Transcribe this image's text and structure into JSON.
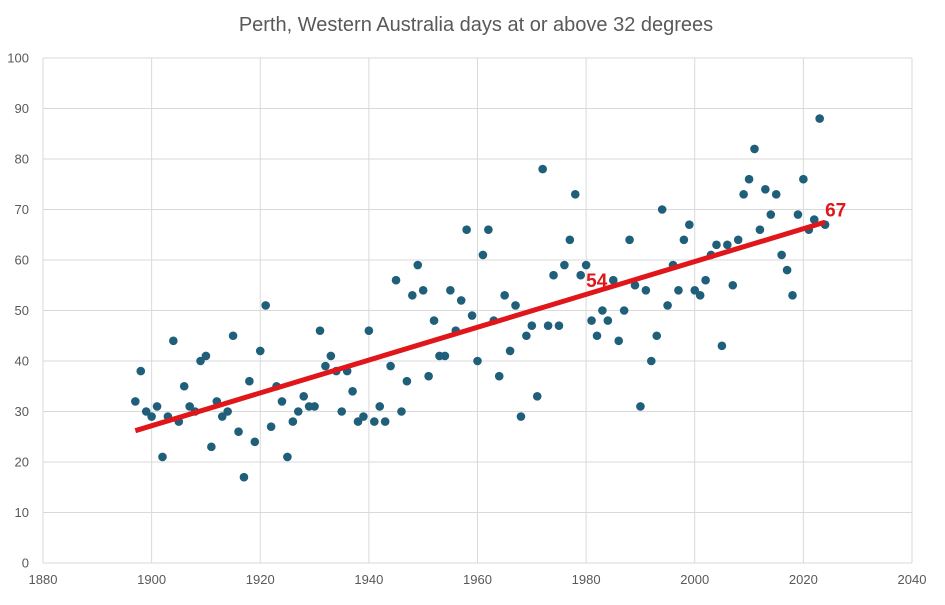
{
  "chart_data": {
    "type": "scatter",
    "title": "Perth, Western Australia days at or above 32 degrees",
    "xlabel": "",
    "ylabel": "",
    "xlim": [
      1880,
      2040
    ],
    "ylim": [
      0,
      100
    ],
    "x_ticks": [
      "1880",
      "1900",
      "1920",
      "1940",
      "1960",
      "1980",
      "2000",
      "2020",
      "2040"
    ],
    "y_ticks": [
      "0",
      "10",
      "20",
      "30",
      "40",
      "50",
      "60",
      "70",
      "80",
      "90",
      "100"
    ],
    "grid": true,
    "legend": "none",
    "colors": {
      "points": "#1f5f7a",
      "trendline": "#e0161b",
      "grid": "#d9d9d9",
      "text": "#595959"
    },
    "series": [
      {
        "x": [
          1897,
          1898,
          1899,
          1900,
          1901,
          1902,
          1903,
          1904,
          1905,
          1906,
          1907,
          1908,
          1909,
          1910,
          1911,
          1912,
          1913,
          1914,
          1915,
          1916,
          1917,
          1918,
          1919,
          1920,
          1921,
          1922,
          1923,
          1924,
          1925,
          1926,
          1927,
          1928,
          1929,
          1930,
          1931,
          1932,
          1933,
          1934,
          1935,
          1936,
          1937,
          1938,
          1939,
          1940,
          1941,
          1942,
          1943,
          1944,
          1945,
          1946,
          1947,
          1948,
          1949,
          1950,
          1951,
          1952,
          1953,
          1954,
          1955,
          1956,
          1957,
          1958,
          1959,
          1960,
          1961,
          1962,
          1963,
          1964,
          1965,
          1966,
          1967,
          1968,
          1969,
          1970,
          1971,
          1972,
          1973,
          1974,
          1975,
          1976,
          1977,
          1978,
          1979,
          1980,
          1981,
          1982,
          1983,
          1984,
          1985,
          1986,
          1987,
          1988,
          1989,
          1990,
          1991,
          1992,
          1993,
          1994,
          1995,
          1996,
          1997,
          1998,
          1999,
          2000,
          2001,
          2002,
          2003,
          2004,
          2005,
          2006,
          2007,
          2008,
          2009,
          2010,
          2011,
          2012,
          2013,
          2014,
          2015,
          2016,
          2017,
          2018,
          2019,
          2020,
          2021,
          2022,
          2023,
          2024
        ],
        "y": [
          32,
          38,
          30,
          29,
          31,
          21,
          29,
          44,
          28,
          35,
          31,
          30,
          40,
          41,
          23,
          32,
          29,
          30,
          45,
          26,
          17,
          36,
          24,
          42,
          51,
          27,
          35,
          32,
          21,
          28,
          30,
          33,
          31,
          31,
          46,
          39,
          41,
          38,
          30,
          38,
          34,
          28,
          29,
          46,
          28,
          31,
          28,
          39,
          56,
          30,
          36,
          53,
          59,
          54,
          37,
          48,
          41,
          41,
          54,
          46,
          52,
          66,
          49,
          40,
          61,
          66,
          48,
          37,
          53,
          42,
          51,
          29,
          45,
          47,
          33,
          78,
          47,
          57,
          47,
          59,
          64,
          73,
          57,
          59,
          48,
          45,
          50,
          48,
          56,
          44,
          50,
          64,
          55,
          31,
          54,
          40,
          45,
          70,
          51,
          59,
          54,
          64,
          67,
          54,
          53,
          56,
          61,
          63,
          43,
          63,
          55,
          64,
          73,
          76,
          82,
          66,
          74,
          69,
          73,
          61,
          58,
          53,
          69,
          76,
          66,
          68,
          88,
          67
        ]
      }
    ],
    "trendline": {
      "x": [
        1897,
        2024
      ],
      "y": [
        26.2,
        67.5
      ]
    },
    "annotations": [
      {
        "text": "54",
        "x": 1980,
        "y": 56
      },
      {
        "text": "67",
        "x": 2024,
        "y": 70
      }
    ]
  }
}
